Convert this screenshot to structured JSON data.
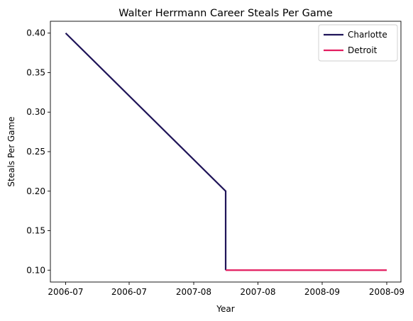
{
  "chart_data": {
    "type": "line",
    "title": "Walter Herrmann Career Steals Per Game",
    "xlabel": "Year",
    "ylabel": "Steals Per Game",
    "ylim": [
      0.085,
      0.415
    ],
    "x_tick_labels": [
      "2006-07",
      "2006-07",
      "2007-08",
      "2007-08",
      "2008-09",
      "2008-09"
    ],
    "y_ticks": [
      0.1,
      0.15,
      0.2,
      0.25,
      0.3,
      0.35,
      0.4
    ],
    "y_tick_labels": [
      "0.10",
      "0.15",
      "0.20",
      "0.25",
      "0.30",
      "0.35",
      "0.40"
    ],
    "grid": false,
    "legend_position": "top-right",
    "series": [
      {
        "name": "Charlotte",
        "color": "#1f1458",
        "points": [
          {
            "x": "2006-07",
            "y": 0.4
          },
          {
            "x": "2007-08",
            "y": 0.2
          },
          {
            "x": "2007-08",
            "y": 0.1
          }
        ]
      },
      {
        "name": "Detroit",
        "color": "#e31c5f",
        "points": [
          {
            "x": "2007-08",
            "y": 0.1
          },
          {
            "x": "2008-09",
            "y": 0.1
          }
        ]
      }
    ]
  }
}
